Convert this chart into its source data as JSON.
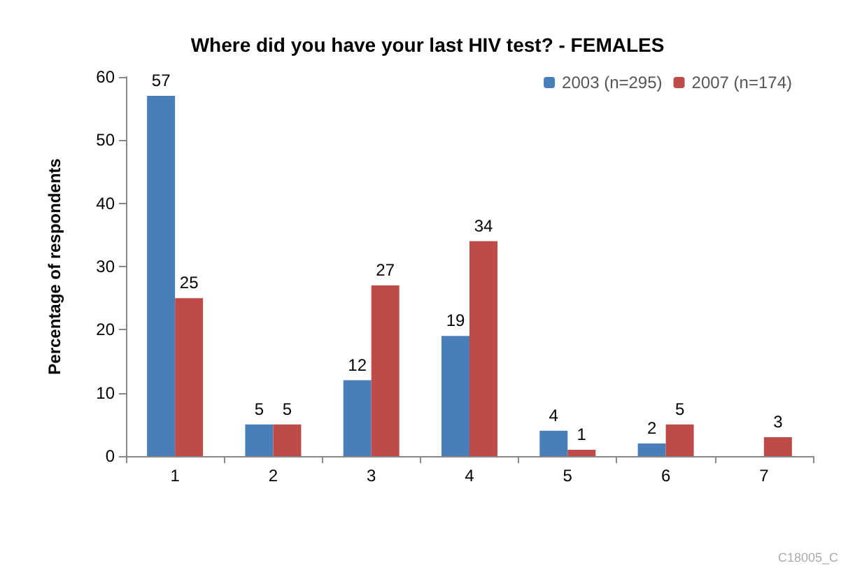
{
  "chart_data": {
    "type": "bar",
    "title": "Where did you have your last HIV test? - FEMALES",
    "ylabel": "Percentage of respondents",
    "categories": [
      "1",
      "2",
      "3",
      "4",
      "5",
      "6",
      "7"
    ],
    "series": [
      {
        "name": "2003 (n=295)",
        "color": "#4a7ebb",
        "values": [
          57,
          5,
          12,
          19,
          4,
          2,
          null
        ]
      },
      {
        "name": "2007 (n=174)",
        "color": "#be4b48",
        "values": [
          25,
          5,
          27,
          34,
          1,
          5,
          3
        ]
      }
    ],
    "ylim": [
      0,
      60
    ],
    "yticks": [
      0,
      10,
      20,
      30,
      40,
      50,
      60
    ],
    "grid": false,
    "legend": "top right",
    "data_labels": true,
    "annotations": [
      "C18005_C"
    ]
  }
}
